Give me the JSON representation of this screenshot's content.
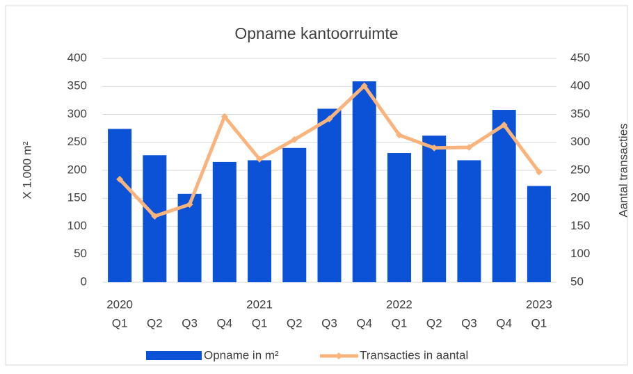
{
  "chart_data": {
    "type": "bar-line",
    "title": "Opname kantoorruimte",
    "categories": [
      "Q1",
      "Q2",
      "Q3",
      "Q4",
      "Q1",
      "Q2",
      "Q3",
      "Q4",
      "Q1",
      "Q2",
      "Q3",
      "Q4",
      "Q1"
    ],
    "years": [
      "2020",
      null,
      null,
      null,
      "2021",
      null,
      null,
      null,
      "2022",
      null,
      null,
      null,
      "2023"
    ],
    "series": [
      {
        "name": "Opname in m²",
        "type": "bar",
        "color": "#0b52d6",
        "axis": "y",
        "values": [
          274,
          227,
          158,
          215,
          218,
          240,
          310,
          359,
          231,
          262,
          218,
          308,
          172
        ]
      },
      {
        "name": "Transacties in aantal",
        "type": "line",
        "color": "#f8b47c",
        "axis": "y2",
        "values": [
          234,
          168,
          189,
          346,
          270,
          305,
          342,
          401,
          313,
          290,
          291,
          331,
          247
        ]
      }
    ],
    "ylabel": "X 1.000 m²",
    "y2label": "Aantal transacties",
    "ylim": [
      0,
      400
    ],
    "yticks": [
      0,
      50,
      100,
      150,
      200,
      250,
      300,
      350,
      400
    ],
    "y2lim": [
      50,
      450
    ],
    "y2ticks": [
      50,
      100,
      150,
      200,
      250,
      300,
      350,
      400,
      450
    ],
    "grid": true,
    "legend": "bottom"
  }
}
